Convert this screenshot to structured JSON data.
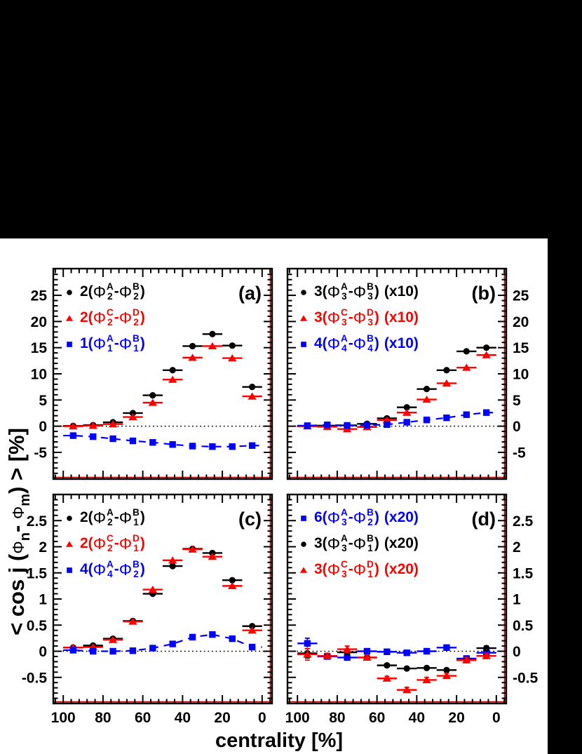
{
  "x_title": "centrality [%]",
  "y_title": {
    "pre": "< cos j (",
    "phi1": "Φ",
    "sub1": "n",
    "mid": "- ",
    "phi2": "Φ",
    "sub2": "m",
    "post": ") > [%]"
  },
  "phi_symbol": "Φ",
  "colors": {
    "black": "#000000",
    "red": "#ff0000",
    "blue": "#0000ff",
    "frame": "#000000",
    "frame_inner_line": "#bb0000",
    "zero_line": "#000000",
    "figure_background": "#ffffff",
    "page_background": "#000000"
  },
  "chart_data": [
    {
      "panel": "a",
      "panel_label": "(a)",
      "type": "scatter",
      "xlabel": "centrality [%]",
      "ylabel": "< cos j (Φn- Φm) > [%]",
      "x_axis": {
        "range": [
          105,
          -5
        ],
        "ticks": [
          {
            "label": "100",
            "v": 100
          },
          {
            "label": "80",
            "v": 80
          },
          {
            "label": "60",
            "v": 60
          },
          {
            "label": "40",
            "v": 40
          },
          {
            "label": "20",
            "v": 20
          },
          {
            "label": "0",
            "v": 0
          }
        ],
        "major_step": 20,
        "minor_step": 4,
        "show_labels": false
      },
      "y_axis": {
        "range": [
          -10.1,
          30.1
        ],
        "ticks": [
          {
            "label": "25",
            "v": 25
          },
          {
            "label": "20",
            "v": 20
          },
          {
            "label": "15",
            "v": 15
          },
          {
            "label": "10",
            "v": 10
          },
          {
            "label": "5",
            "v": 5
          },
          {
            "label": "0",
            "v": 0
          },
          {
            "label": "-5",
            "v": -5
          }
        ],
        "major_step": 5,
        "minor_step": 1,
        "label_side": "left"
      },
      "x_bin_halfwidth": 5,
      "x": [
        95,
        85,
        75,
        65,
        55,
        45,
        35,
        25,
        15,
        5
      ],
      "zero_line": true,
      "series": [
        {
          "name": "2(Phi2^A - Phi2^B)",
          "marker": "circle",
          "color": "#000000",
          "values": [
            0.05,
            0.2,
            0.75,
            2.5,
            5.9,
            10.7,
            15.3,
            17.6,
            15.4,
            7.5
          ],
          "legend": {
            "coef": "2(",
            "sup1": "A",
            "sub1": "2",
            "sep": "- ",
            "sup2": "B",
            "sub2": "2",
            "close": ")",
            "mult": ""
          }
        },
        {
          "name": "2(Phi2^C - Phi2^D)",
          "marker": "triangle",
          "color": "#ff0000",
          "values": [
            0.0,
            0.1,
            0.4,
            1.75,
            4.5,
            8.9,
            13.1,
            15.3,
            13.0,
            5.7
          ],
          "legend": {
            "coef": "2(",
            "sup1": "C",
            "sub1": "2",
            "sep": "- ",
            "sup2": "D",
            "sub2": "2",
            "close": ")",
            "mult": ""
          }
        },
        {
          "name": "1(Phi1^A - Phi1^B)",
          "marker": "square",
          "color": "#0000ff",
          "line": "dashed",
          "values": [
            -1.8,
            -2.0,
            -2.4,
            -2.8,
            -3.1,
            -3.5,
            -3.8,
            -3.9,
            -3.9,
            -3.7
          ],
          "legend": {
            "coef": "1(",
            "sup1": "A",
            "sub1": "1",
            "sep": "- ",
            "sup2": "B",
            "sub2": "1",
            "close": ")",
            "mult": ""
          }
        }
      ]
    },
    {
      "panel": "b",
      "panel_label": "(b)",
      "type": "scatter",
      "xlabel": "centrality [%]",
      "ylabel": "< cos j (Φn- Φm) > [%]",
      "x_axis": {
        "range": [
          105,
          -5
        ],
        "ticks": [
          {
            "label": "100",
            "v": 100
          },
          {
            "label": "80",
            "v": 80
          },
          {
            "label": "60",
            "v": 60
          },
          {
            "label": "40",
            "v": 40
          },
          {
            "label": "20",
            "v": 20
          },
          {
            "label": "0",
            "v": 0
          }
        ],
        "major_step": 20,
        "minor_step": 4,
        "show_labels": false
      },
      "y_axis": {
        "range": [
          -10.1,
          30.1
        ],
        "ticks": [
          {
            "label": "25",
            "v": 25
          },
          {
            "label": "20",
            "v": 20
          },
          {
            "label": "15",
            "v": 15
          },
          {
            "label": "10",
            "v": 10
          },
          {
            "label": "5",
            "v": 5
          },
          {
            "label": "0",
            "v": 0
          },
          {
            "label": "-5",
            "v": -5
          }
        ],
        "major_step": 5,
        "minor_step": 1,
        "label_side": "right"
      },
      "x_bin_halfwidth": 5,
      "x": [
        95,
        85,
        75,
        65,
        55,
        45,
        35,
        25,
        15,
        5
      ],
      "zero_line": true,
      "series": [
        {
          "name": "3(Phi3^A - Phi3^B) (x10)",
          "marker": "circle",
          "color": "#000000",
          "values": [
            0.05,
            0.1,
            0.15,
            0.45,
            1.5,
            3.6,
            7.1,
            10.7,
            14.3,
            15.0
          ],
          "ey": [
            0.15,
            0,
            0,
            0.2,
            0,
            0,
            0,
            0,
            0,
            0
          ],
          "legend": {
            "coef": "3(",
            "sup1": "A",
            "sub1": "3",
            "sep": "- ",
            "sup2": "B",
            "sub2": "3",
            "close": ")",
            "mult": " (x10)"
          }
        },
        {
          "name": "3(Phi3^C - Phi3^D) (x10)",
          "marker": "triangle",
          "color": "#ff0000",
          "values": [
            0.0,
            -0.1,
            -0.55,
            -0.15,
            1.15,
            2.6,
            5.1,
            8.2,
            11.2,
            13.6
          ],
          "ey": [
            0.15,
            0.15,
            0.4,
            0.3,
            0.2,
            0,
            0,
            0,
            0,
            0
          ],
          "legend": {
            "coef": "3(",
            "sup1": "C",
            "sub1": "3",
            "sep": "- ",
            "sup2": "D",
            "sub2": "3",
            "close": ")",
            "mult": " (x10)"
          }
        },
        {
          "name": "4(Phi4^A - Phi4^B) (x10)",
          "marker": "square",
          "color": "#0000ff",
          "line": "dashed",
          "values": [
            0.1,
            0.25,
            0.15,
            0.2,
            0.3,
            0.75,
            1.2,
            1.6,
            2.2,
            2.6
          ],
          "legend": {
            "coef": "4(",
            "sup1": "A",
            "sub1": "4",
            "sep": "- ",
            "sup2": "B",
            "sub2": "4",
            "close": ")",
            "mult": " (x10)"
          }
        }
      ]
    },
    {
      "panel": "c",
      "panel_label": "(c)",
      "type": "scatter",
      "xlabel": "centrality [%]",
      "ylabel": "< cos j (Φn- Φm) > [%]",
      "x_axis": {
        "range": [
          105,
          -5
        ],
        "ticks": [
          {
            "label": "100",
            "v": 100
          },
          {
            "label": "80",
            "v": 80
          },
          {
            "label": "60",
            "v": 60
          },
          {
            "label": "40",
            "v": 40
          },
          {
            "label": "20",
            "v": 20
          },
          {
            "label": "0",
            "v": 0
          }
        ],
        "major_step": 20,
        "minor_step": 4,
        "show_labels": true
      },
      "y_axis": {
        "range": [
          -1.0,
          3.0
        ],
        "ticks": [
          {
            "label": "2.5",
            "v": 2.5
          },
          {
            "label": "2",
            "v": 2
          },
          {
            "label": "1.5",
            "v": 1.5
          },
          {
            "label": "1",
            "v": 1
          },
          {
            "label": "0.5",
            "v": 0.5
          },
          {
            "label": "0",
            "v": 0
          },
          {
            "label": "-0.5",
            "v": -0.5
          }
        ],
        "major_step": 0.5,
        "minor_step": 0.1,
        "label_side": "left"
      },
      "x_bin_halfwidth": 5,
      "x": [
        95,
        85,
        75,
        65,
        55,
        45,
        35,
        25,
        15,
        5
      ],
      "zero_line": true,
      "series": [
        {
          "name": "2(Phi2^A - Phi1^B)",
          "marker": "circle",
          "color": "#000000",
          "values": [
            0.07,
            0.11,
            0.24,
            0.58,
            1.1,
            1.63,
            1.96,
            1.88,
            1.36,
            0.48
          ],
          "legend": {
            "coef": "2(",
            "sup1": "A",
            "sub1": "2",
            "sep": "- ",
            "sup2": "B",
            "sub2": "1",
            "close": ")",
            "mult": ""
          }
        },
        {
          "name": "2(Phi2^C - Phi1^D)",
          "marker": "triangle",
          "color": "#ff0000",
          "values": [
            0.07,
            0.08,
            0.22,
            0.57,
            1.18,
            1.74,
            1.95,
            1.81,
            1.25,
            0.4
          ],
          "legend": {
            "coef": "2(",
            "sup1": "C",
            "sub1": "2",
            "sep": "- ",
            "sup2": "D",
            "sub2": "1",
            "close": ")",
            "mult": ""
          }
        },
        {
          "name": "4(Phi4^A - Phi2^B)",
          "marker": "square",
          "color": "#0000ff",
          "line": "dashed",
          "values": [
            0.02,
            0.0,
            0.0,
            0.01,
            0.06,
            0.14,
            0.27,
            0.32,
            0.24,
            0.08
          ],
          "legend": {
            "coef": "4(",
            "sup1": "A",
            "sub1": "4",
            "sep": "- ",
            "sup2": "B",
            "sub2": "2",
            "close": ")",
            "mult": ""
          }
        }
      ]
    },
    {
      "panel": "d",
      "panel_label": "(d)",
      "type": "scatter",
      "xlabel": "centrality [%]",
      "ylabel": "< cos j (Φn- Φm) > [%]",
      "x_axis": {
        "range": [
          105,
          -5
        ],
        "ticks": [
          {
            "label": "100",
            "v": 100
          },
          {
            "label": "80",
            "v": 80
          },
          {
            "label": "60",
            "v": 60
          },
          {
            "label": "40",
            "v": 40
          },
          {
            "label": "20",
            "v": 20
          },
          {
            "label": "0",
            "v": 0
          }
        ],
        "major_step": 20,
        "minor_step": 4,
        "show_labels": true
      },
      "y_axis": {
        "range": [
          -1.0,
          3.0
        ],
        "ticks": [
          {
            "label": "2.5",
            "v": 2.5
          },
          {
            "label": "2",
            "v": 2
          },
          {
            "label": "1.5",
            "v": 1.5
          },
          {
            "label": "1",
            "v": 1
          },
          {
            "label": "0.5",
            "v": 0.5
          },
          {
            "label": "0",
            "v": 0
          },
          {
            "label": "-0.5",
            "v": -0.5
          }
        ],
        "major_step": 0.5,
        "minor_step": 0.1,
        "label_side": "right"
      },
      "x_bin_halfwidth": 5,
      "x": [
        95,
        85,
        75,
        65,
        55,
        45,
        35,
        25,
        15,
        5
      ],
      "zero_line": true,
      "series": [
        {
          "name": "6(Phi3^A - Phi2^B) (x20)",
          "marker": "square",
          "color": "#0000ff",
          "values": [
            0.15,
            -0.1,
            -0.12,
            0.0,
            -0.01,
            -0.03,
            0.0,
            0.07,
            -0.14,
            -0.03
          ],
          "ey": [
            0.1,
            0.05,
            0.05,
            0.04,
            0.03,
            0.03,
            0.03,
            0.04,
            0.05,
            0.04
          ],
          "legend": {
            "coef": "6(",
            "sup1": "A",
            "sub1": "3",
            "sep": "- ",
            "sup2": "B",
            "sub2": "2",
            "close": ")",
            "mult": " (x20)"
          }
        },
        {
          "name": "3(Phi3^A - Phi1^B) (x20)",
          "marker": "circle",
          "color": "#000000",
          "values": [
            -0.04,
            -0.09,
            -0.02,
            -0.12,
            -0.27,
            -0.33,
            -0.32,
            -0.36,
            -0.17,
            0.06
          ],
          "ey": [
            0.09,
            0.04,
            0.04,
            0.04,
            0.03,
            0.03,
            0.03,
            0.03,
            0.04,
            0.04
          ],
          "legend": {
            "coef": "3(",
            "sup1": "A",
            "sub1": "3",
            "sep": "- ",
            "sup2": "B",
            "sub2": "1",
            "close": ")",
            "mult": " (x20)"
          }
        },
        {
          "name": "3(Phi3^C - Phi1^D) (x20)",
          "marker": "triangle",
          "color": "#ff0000",
          "values": [
            -0.06,
            -0.09,
            0.04,
            -0.12,
            -0.52,
            -0.74,
            -0.55,
            -0.47,
            -0.17,
            -0.09
          ],
          "ey": [
            0.11,
            0.05,
            0.06,
            0.05,
            0.04,
            0.05,
            0.05,
            0.05,
            0.05,
            0.05
          ],
          "legend": {
            "coef": "3(",
            "sup1": "C",
            "sub1": "3",
            "sep": "- ",
            "sup2": "D",
            "sub2": "1",
            "close": ")",
            "mult": " (x20)"
          }
        }
      ]
    }
  ]
}
